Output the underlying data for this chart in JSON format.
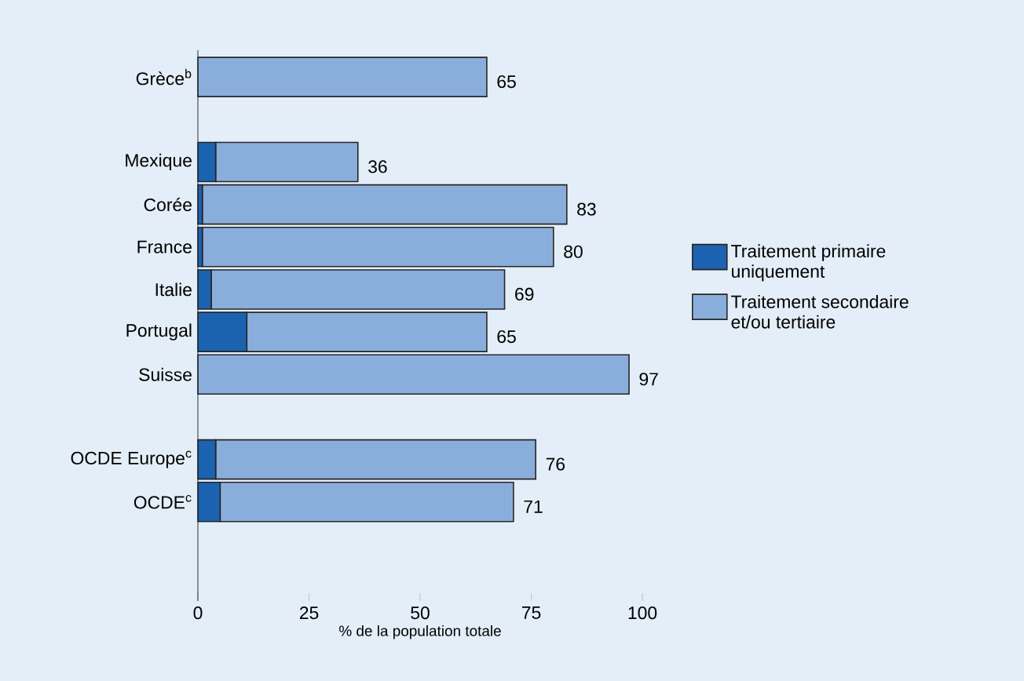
{
  "chart_data": {
    "type": "bar",
    "orientation": "horizontal",
    "stacked": true,
    "categories": [
      "Grèce$^{b}$",
      null,
      "Mexique",
      "Corée",
      "France",
      "Italie",
      "Portugal",
      "Suisse",
      null,
      "OCDE Europe$^{c}$",
      "OCDE$^{c}$"
    ],
    "series": [
      {
        "name": "Traitement primaire uniquement",
        "color": "#1b63b0",
        "values": [
          0,
          null,
          4,
          1,
          1,
          3,
          11,
          0,
          null,
          4,
          5
        ]
      },
      {
        "name": "Traitement secondaire et/ou tertiaire",
        "color": "#8aaedc",
        "values": [
          65,
          null,
          32,
          82,
          79,
          66,
          54,
          97,
          null,
          72,
          66
        ]
      }
    ],
    "totals": [
      "65",
      null,
      "36",
      "83",
      "80",
      "69",
      "65",
      "97",
      null,
      "76",
      "71"
    ],
    "xlabel": "% de la population totale",
    "xlim": [
      0,
      100
    ],
    "xticks": [
      0,
      25,
      50,
      75,
      100
    ],
    "legend": "right",
    "grid": false
  }
}
